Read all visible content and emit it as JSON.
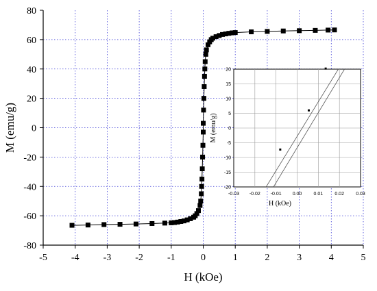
{
  "chart_data": [
    {
      "type": "scatter",
      "title": "",
      "xlabel": "H (kOe)",
      "ylabel": "M (emu/g)",
      "xlim": [
        -5,
        5
      ],
      "ylim": [
        -80,
        80
      ],
      "xticks": [
        "-5",
        "-4",
        "-3",
        "-2",
        "-1",
        "0",
        "1",
        "2",
        "3",
        "4",
        "5"
      ],
      "yticks": [
        "-80",
        "-60",
        "-40",
        "-20",
        "0",
        "20",
        "40",
        "60",
        "80"
      ],
      "grid": "dotted blue",
      "marker": "square",
      "series": [
        {
          "values": [
            [
              -4.1,
              -66.5
            ],
            [
              -3.6,
              -66.3
            ],
            [
              -3.1,
              -66.0
            ],
            [
              -2.6,
              -65.8
            ],
            [
              -2.1,
              -65.6
            ],
            [
              -1.6,
              -65.3
            ],
            [
              -1.2,
              -65.0
            ],
            [
              -1.0,
              -64.8
            ],
            [
              -0.9,
              -64.6
            ],
            [
              -0.8,
              -64.3
            ],
            [
              -0.7,
              -63.9
            ],
            [
              -0.6,
              -63.5
            ],
            [
              -0.5,
              -62.8
            ],
            [
              -0.4,
              -62.0
            ],
            [
              -0.3,
              -61.0
            ],
            [
              -0.25,
              -60.0
            ],
            [
              -0.2,
              -58.5
            ],
            [
              -0.15,
              -56.5
            ],
            [
              -0.1,
              -53.0
            ],
            [
              -0.08,
              -50.0
            ],
            [
              -0.06,
              -45.0
            ],
            [
              -0.05,
              -40.0
            ],
            [
              -0.04,
              -35.0
            ],
            [
              -0.03,
              -28.0
            ],
            [
              -0.02,
              -20.0
            ],
            [
              -0.01,
              -12.0
            ],
            [
              0.0,
              -3.0
            ],
            [
              0.0,
              3.0
            ],
            [
              0.01,
              12.0
            ],
            [
              0.02,
              20.0
            ],
            [
              0.03,
              28.0
            ],
            [
              0.04,
              35.0
            ],
            [
              0.05,
              40.0
            ],
            [
              0.06,
              45.0
            ],
            [
              0.08,
              50.0
            ],
            [
              0.1,
              53.0
            ],
            [
              0.15,
              56.5
            ],
            [
              0.2,
              58.5
            ],
            [
              0.25,
              60.0
            ],
            [
              0.3,
              61.0
            ],
            [
              0.4,
              62.0
            ],
            [
              0.5,
              62.8
            ],
            [
              0.6,
              63.5
            ],
            [
              0.7,
              63.9
            ],
            [
              0.8,
              64.3
            ],
            [
              0.9,
              64.6
            ],
            [
              1.0,
              64.8
            ],
            [
              1.5,
              65.3
            ],
            [
              2.0,
              65.6
            ],
            [
              2.5,
              65.9
            ],
            [
              3.0,
              66.1
            ],
            [
              3.5,
              66.3
            ],
            [
              3.9,
              66.5
            ],
            [
              4.1,
              66.6
            ]
          ]
        }
      ]
    },
    {
      "type": "line",
      "title": "",
      "xlabel": "H (kOe)",
      "ylabel": "M (emu/g)",
      "xlim": [
        -0.03,
        0.03
      ],
      "ylim": [
        -20,
        20
      ],
      "xticks": [
        "-0.03",
        "-0.02",
        "-0.01",
        "0.00",
        "0.01",
        "0.02",
        "0.03"
      ],
      "yticks": [
        "20",
        "15",
        "10",
        "5",
        "0",
        "-5",
        "-10",
        "-15",
        "-20"
      ],
      "grid": "solid gray",
      "series": [
        {
          "values": [
            [
              -0.0147,
              -20
            ],
            [
              0.0195,
              20
            ]
          ]
        },
        {
          "values": [
            [
              -0.0112,
              -20
            ],
            [
              0.0224,
              20
            ]
          ]
        }
      ],
      "points": [
        [
          -0.008,
          -7.3
        ],
        [
          0.0055,
          6.0
        ],
        [
          0.0135,
          20.2
        ]
      ]
    }
  ]
}
